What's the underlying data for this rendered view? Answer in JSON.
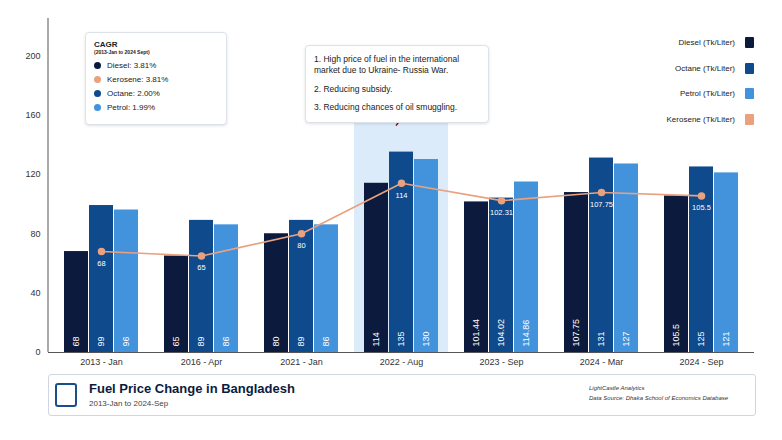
{
  "chart_data": {
    "type": "bar",
    "title": "Fuel Price Change in Bangladesh",
    "subtitle": "2013-Jan to 2024-Sep",
    "caption": [
      "LightCastle Analytics",
      "Data Source: Dhaka School of Economics Database"
    ],
    "categories": [
      "2013 - Jan",
      "2016 - Apr",
      "2021 - Jan",
      "2022 - Aug",
      "2023 - Sep",
      "2024 - Mar",
      "2024 - Sep"
    ],
    "series": [
      {
        "name": "Diesel (Tk/Liter)",
        "color": "#0c1b3d",
        "values": [
          68,
          65,
          80,
          114,
          101.44,
          107.75,
          105.5
        ]
      },
      {
        "name": "Octane (Tk/Liter)",
        "color": "#0e4a8c",
        "values": [
          99,
          89,
          89,
          135,
          104.02,
          131,
          125
        ]
      },
      {
        "name": "Petrol (Tk/Liter)",
        "color": "#4293dc",
        "values": [
          96,
          86,
          86,
          130,
          114.86,
          127,
          121
        ]
      },
      {
        "name": "Kerosene (Tk/Liter)",
        "type": "line",
        "marker": "circle",
        "color": "#e9a17f",
        "values": [
          68,
          65,
          80,
          114,
          102.31,
          107.75,
          105.5
        ]
      }
    ],
    "ylim": [
      0,
      225
    ],
    "yticks": [
      0,
      40,
      80,
      120,
      160,
      200
    ],
    "grid": false,
    "legend": "top-right",
    "data_labels": true,
    "cagr": {
      "title": "CAGR",
      "subtitle": "(2013-Jan to 2024 Sept)",
      "items": [
        {
          "text": "Diesel: 3.81%",
          "color": "#0c1b3d"
        },
        {
          "text": "Kerosene: 3.81%",
          "color": "#e9a17f"
        },
        {
          "text": "Octane: 2.00%",
          "color": "#0e4a8c"
        },
        {
          "text": "Petrol: 1.99%",
          "color": "#4293dc"
        }
      ]
    },
    "annotations": [
      {
        "category": "2022 - Aug",
        "lines": [
          "1. High price of fuel in the international market due to Ukraine- Russia War.",
          "2. Reducing subsidy.",
          "3. Reducing chances of oil smuggling."
        ]
      }
    ]
  }
}
